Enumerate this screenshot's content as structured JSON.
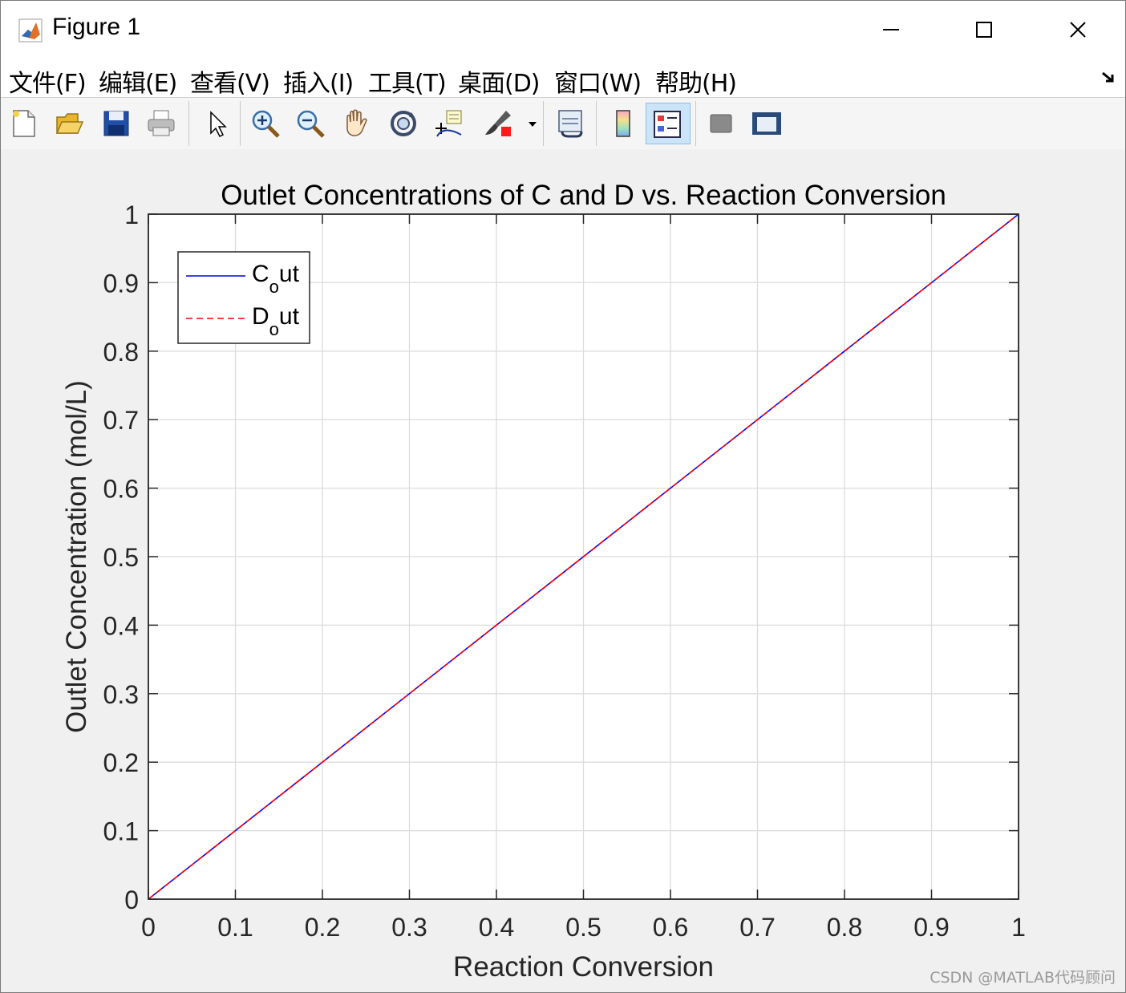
{
  "window": {
    "title": "Figure 1",
    "controls": {
      "minimize": "minimize-icon",
      "maximize": "maximize-icon",
      "close": "close-icon"
    }
  },
  "menu": {
    "items": [
      "文件(F)",
      "编辑(E)",
      "查看(V)",
      "插入(I)",
      "工具(T)",
      "桌面(D)",
      "窗口(W)",
      "帮助(H)"
    ]
  },
  "toolbar": {
    "buttons": [
      {
        "icon": "new-figure-icon"
      },
      {
        "icon": "open-file-icon"
      },
      {
        "icon": "save-icon"
      },
      {
        "icon": "print-icon"
      },
      {
        "icon": "edit-plot-arrow-icon"
      },
      {
        "icon": "zoom-in-icon"
      },
      {
        "icon": "zoom-out-icon"
      },
      {
        "icon": "pan-hand-icon"
      },
      {
        "icon": "rotate-3d-icon"
      },
      {
        "icon": "data-cursor-icon"
      },
      {
        "icon": "brush-icon"
      },
      {
        "icon": "link-plot-icon"
      },
      {
        "icon": "colorbar-icon"
      },
      {
        "icon": "legend-icon",
        "active": true
      },
      {
        "icon": "hide-plot-tools-icon"
      },
      {
        "icon": "show-plot-tools-icon"
      }
    ]
  },
  "chart_data": {
    "type": "line",
    "title": "Outlet Concentrations of C and D vs. Reaction Conversion",
    "xlabel": "Reaction Conversion",
    "ylabel": "Outlet Concentration (mol/L)",
    "xlim": [
      0,
      1
    ],
    "ylim": [
      0,
      1
    ],
    "xticks": [
      "0",
      "0.1",
      "0.2",
      "0.3",
      "0.4",
      "0.5",
      "0.6",
      "0.7",
      "0.8",
      "0.9",
      "1"
    ],
    "yticks": [
      "0",
      "0.1",
      "0.2",
      "0.3",
      "0.4",
      "0.5",
      "0.6",
      "0.7",
      "0.8",
      "0.9",
      "1"
    ],
    "grid": true,
    "legend_location": "top-left",
    "series": [
      {
        "name_main": "C",
        "name_sub": "o",
        "name_tail": "ut",
        "color": "#0000ff",
        "style": "solid",
        "x": [
          0,
          1
        ],
        "y": [
          0,
          1
        ]
      },
      {
        "name_main": "D",
        "name_sub": "o",
        "name_tail": "ut",
        "color": "#ff0000",
        "style": "dashed",
        "x": [
          0,
          1
        ],
        "y": [
          0,
          1
        ]
      }
    ]
  },
  "watermark": "CSDN @MATLAB代码顾问"
}
